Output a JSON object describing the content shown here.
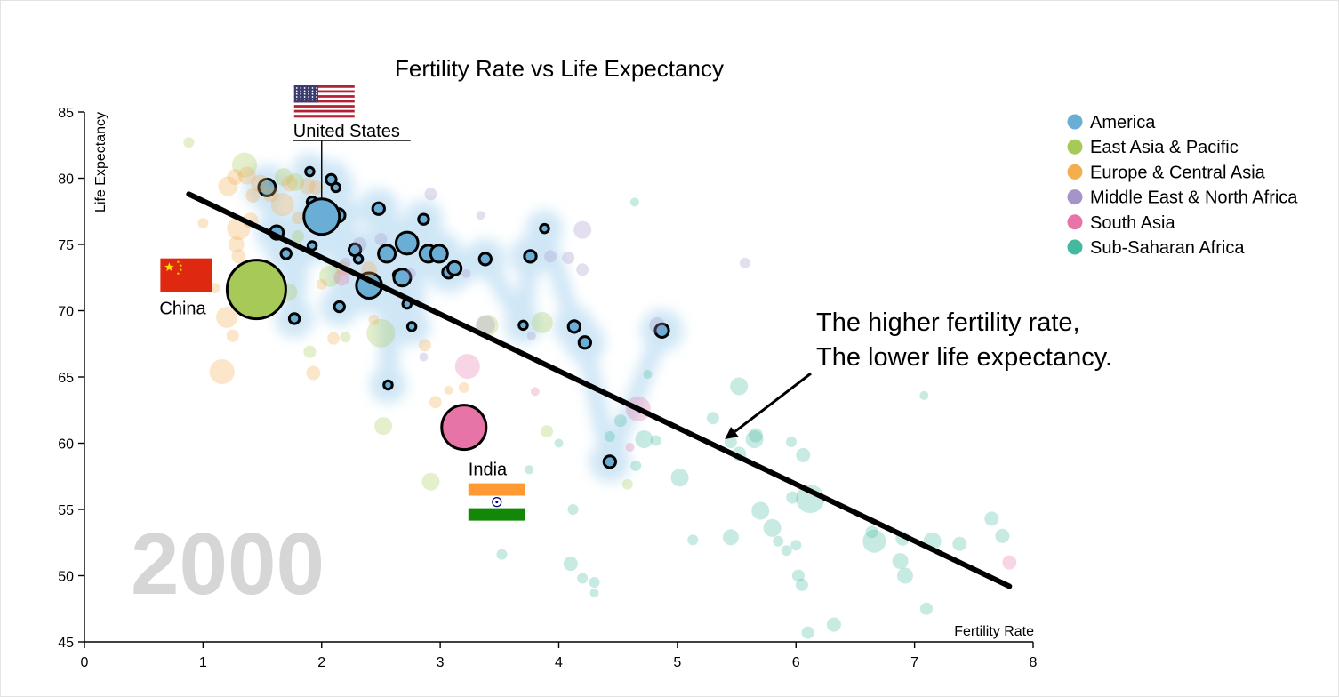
{
  "chart_data": {
    "type": "scatter",
    "title": "Fertility Rate vs Life Expectancy",
    "xlabel": "Fertility Rate",
    "ylabel": "Life Expectancy",
    "year_label": "2000",
    "xlim": [
      0,
      8
    ],
    "ylim": [
      45,
      85
    ],
    "xticks": [
      "0",
      "1",
      "2",
      "3",
      "4",
      "5",
      "6",
      "7",
      "8"
    ],
    "yticks": [
      "45",
      "50",
      "55",
      "60",
      "65",
      "70",
      "75",
      "80",
      "85"
    ],
    "grid": false,
    "legend_position": "top-right",
    "legend": [
      {
        "name": "America",
        "color": "#6aaed6"
      },
      {
        "name": "East Asia & Pacific",
        "color": "#a6c957"
      },
      {
        "name": "Europe & Central Asia",
        "color": "#f4ad4f"
      },
      {
        "name": "Middle East & North Africa",
        "color": "#a594c9"
      },
      {
        "name": "South Asia",
        "color": "#e774a6"
      },
      {
        "name": "Sub-Saharan Africa",
        "color": "#45b8a0"
      }
    ],
    "trend_line": {
      "x": [
        0.88,
        7.8
      ],
      "y": [
        78.8,
        49.2
      ]
    },
    "annotation": {
      "lines": [
        "The higher fertility rate,",
        "The lower life expectancy."
      ],
      "arrow_to": {
        "x": 5.4,
        "y": 60.3
      }
    },
    "highlighted": [
      {
        "name": "United States",
        "x": 2.0,
        "y": 77.1,
        "region": "America",
        "flag": "us-flag-icon"
      },
      {
        "name": "China",
        "x": 1.45,
        "y": 71.6,
        "region": "East Asia & Pacific",
        "flag": "china-flag-icon"
      },
      {
        "name": "India",
        "x": 3.2,
        "y": 61.2,
        "region": "South Asia",
        "flag": "india-flag-icon"
      }
    ],
    "series": [
      {
        "name": "America",
        "points": [
          [
            1.54,
            79.3,
            1
          ],
          [
            1.62,
            75.9,
            0.8
          ],
          [
            1.7,
            74.3,
            0.6
          ],
          [
            1.77,
            69.4,
            0.6
          ],
          [
            1.92,
            78.2,
            0.6
          ],
          [
            1.9,
            80.5,
            0.5
          ],
          [
            1.92,
            74.9,
            0.5
          ],
          [
            2.0,
            77.1,
            2
          ],
          [
            2.08,
            79.9,
            0.6
          ],
          [
            2.12,
            79.3,
            0.5
          ],
          [
            2.14,
            77.2,
            0.8
          ],
          [
            2.15,
            70.3,
            0.6
          ],
          [
            2.28,
            74.6,
            0.7
          ],
          [
            2.31,
            73.9,
            0.5
          ],
          [
            2.4,
            71.9,
            1.5
          ],
          [
            2.48,
            77.7,
            0.7
          ],
          [
            2.55,
            74.3,
            1
          ],
          [
            2.56,
            64.4,
            0.5
          ],
          [
            2.64,
            72.7,
            0.5
          ],
          [
            2.68,
            72.5,
            1
          ],
          [
            2.72,
            75.1,
            1.3
          ],
          [
            2.72,
            70.5,
            0.5
          ],
          [
            2.76,
            68.8,
            0.5
          ],
          [
            2.86,
            76.9,
            0.6
          ],
          [
            2.9,
            74.3,
            1
          ],
          [
            2.99,
            74.3,
            1
          ],
          [
            3.07,
            72.9,
            0.7
          ],
          [
            3.12,
            73.2,
            0.8
          ],
          [
            3.38,
            73.9,
            0.7
          ],
          [
            3.7,
            68.9,
            0.5
          ],
          [
            3.76,
            74.1,
            0.7
          ],
          [
            3.88,
            76.2,
            0.5
          ],
          [
            4.13,
            68.8,
            0.7
          ],
          [
            4.22,
            67.6,
            0.7
          ],
          [
            4.43,
            58.6,
            0.7
          ],
          [
            4.87,
            68.5,
            0.8
          ]
        ]
      },
      {
        "name": "East Asia & Pacific",
        "points": [
          [
            1.45,
            71.6,
            3.3
          ],
          [
            1.35,
            81.0,
            1.4
          ],
          [
            0.88,
            82.7,
            0.6
          ],
          [
            1.68,
            80.1,
            1
          ],
          [
            1.78,
            79.7,
            1
          ],
          [
            2.07,
            72.6,
            1.2
          ],
          [
            2.5,
            68.3,
            1.6
          ],
          [
            2.52,
            61.3,
            1
          ],
          [
            2.92,
            57.1,
            1
          ],
          [
            3.4,
            68.9,
            1.2
          ],
          [
            3.86,
            69.1,
            1.2
          ],
          [
            1.6,
            72.1,
            1
          ],
          [
            1.72,
            71.4,
            1
          ],
          [
            1.9,
            66.9,
            0.7
          ],
          [
            1.8,
            75.6,
            0.7
          ],
          [
            2.2,
            68.0,
            0.6
          ],
          [
            4.58,
            56.9,
            0.6
          ],
          [
            3.9,
            60.9,
            0.7
          ]
        ]
      },
      {
        "name": "Europe & Central Asia",
        "points": [
          [
            1.16,
            65.4,
            1.4
          ],
          [
            1.2,
            69.5,
            1.2
          ],
          [
            1.27,
            80.1,
            0.9
          ],
          [
            1.21,
            79.4,
            1.1
          ],
          [
            1.37,
            80.2,
            1
          ],
          [
            1.3,
            76.2,
            1.3
          ],
          [
            1.28,
            75.0,
            0.9
          ],
          [
            1.4,
            76.8,
            0.9
          ],
          [
            1.42,
            78.7,
            0.8
          ],
          [
            1.48,
            79.6,
            1
          ],
          [
            1.57,
            78.8,
            0.9
          ],
          [
            1.67,
            78.0,
            1.3
          ],
          [
            1.73,
            79.6,
            0.9
          ],
          [
            1.88,
            79.4,
            0.9
          ],
          [
            1.95,
            79.3,
            0.8
          ],
          [
            2.18,
            73.2,
            0.8
          ],
          [
            2.4,
            73.1,
            0.9
          ],
          [
            1.25,
            68.1,
            0.7
          ],
          [
            1.3,
            74.1,
            0.8
          ],
          [
            1.1,
            71.7,
            0.6
          ],
          [
            1.0,
            76.6,
            0.6
          ],
          [
            1.5,
            72.3,
            0.6
          ],
          [
            1.93,
            65.3,
            0.8
          ],
          [
            2.1,
            67.9,
            0.7
          ],
          [
            3.2,
            64.2,
            0.6
          ],
          [
            3.07,
            64.0,
            0.5
          ],
          [
            2.87,
            67.4,
            0.7
          ],
          [
            2.44,
            69.3,
            0.6
          ],
          [
            2.96,
            63.1,
            0.7
          ],
          [
            1.4,
            71.0,
            0.6
          ],
          [
            1.8,
            77.0,
            0.7
          ],
          [
            2.0,
            72.0,
            0.6
          ]
        ]
      },
      {
        "name": "Middle East & North Africa",
        "points": [
          [
            2.32,
            75.0,
            0.8
          ],
          [
            2.2,
            73.6,
            0.6
          ],
          [
            2.5,
            75.4,
            0.7
          ],
          [
            2.75,
            72.8,
            0.6
          ],
          [
            2.92,
            78.8,
            0.7
          ],
          [
            3.34,
            77.2,
            0.5
          ],
          [
            3.22,
            72.8,
            0.5
          ],
          [
            3.38,
            68.9,
            1.1
          ],
          [
            3.93,
            74.1,
            0.7
          ],
          [
            4.08,
            74.0,
            0.7
          ],
          [
            4.2,
            73.1,
            0.7
          ],
          [
            4.2,
            76.1,
            1
          ],
          [
            4.83,
            68.9,
            0.9
          ],
          [
            5.57,
            73.6,
            0.6
          ],
          [
            3.77,
            68.1,
            0.5
          ],
          [
            2.86,
            66.5,
            0.5
          ]
        ]
      },
      {
        "name": "South Asia",
        "points": [
          [
            3.2,
            61.2,
            2.5
          ],
          [
            3.23,
            65.8,
            1.4
          ],
          [
            4.67,
            62.6,
            1.4
          ],
          [
            2.17,
            72.5,
            0.9
          ],
          [
            7.8,
            51.0,
            0.8
          ],
          [
            3.8,
            63.9,
            0.5
          ],
          [
            4.6,
            59.7,
            0.5
          ]
        ]
      },
      {
        "name": "Sub-Saharan Africa",
        "points": [
          [
            4.64,
            78.2,
            0.5
          ],
          [
            3.52,
            51.6,
            0.6
          ],
          [
            4.12,
            55.0,
            0.6
          ],
          [
            4.43,
            60.5,
            0.6
          ],
          [
            4.52,
            61.7,
            0.7
          ],
          [
            4.65,
            58.3,
            0.6
          ],
          [
            4.75,
            65.2,
            0.5
          ],
          [
            4.72,
            60.3,
            1
          ],
          [
            4.82,
            60.2,
            0.6
          ],
          [
            5.02,
            57.4,
            1
          ],
          [
            5.13,
            52.7,
            0.6
          ],
          [
            5.3,
            61.9,
            0.7
          ],
          [
            5.45,
            60.1,
            0.7
          ],
          [
            5.45,
            52.9,
            0.9
          ],
          [
            5.52,
            59.2,
            0.8
          ],
          [
            5.52,
            64.3,
            1
          ],
          [
            5.65,
            60.3,
            1
          ],
          [
            5.66,
            60.6,
            0.8
          ],
          [
            5.7,
            54.9,
            1
          ],
          [
            5.8,
            53.6,
            1
          ],
          [
            5.85,
            52.6,
            0.6
          ],
          [
            5.92,
            51.9,
            0.6
          ],
          [
            5.96,
            60.1,
            0.6
          ],
          [
            5.97,
            55.9,
            0.7
          ],
          [
            6.0,
            52.3,
            0.6
          ],
          [
            6.02,
            50.0,
            0.7
          ],
          [
            6.05,
            49.3,
            0.7
          ],
          [
            6.06,
            59.1,
            0.8
          ],
          [
            6.12,
            55.8,
            1.6
          ],
          [
            6.1,
            45.7,
            0.7
          ],
          [
            6.32,
            46.3,
            0.8
          ],
          [
            6.64,
            53.3,
            0.7
          ],
          [
            6.66,
            52.6,
            1.3
          ],
          [
            6.88,
            51.1,
            0.9
          ],
          [
            6.9,
            52.8,
            0.8
          ],
          [
            6.92,
            50.0,
            0.9
          ],
          [
            7.08,
            63.6,
            0.5
          ],
          [
            7.1,
            47.5,
            0.7
          ],
          [
            7.15,
            52.6,
            1
          ],
          [
            7.38,
            52.4,
            0.8
          ],
          [
            7.65,
            54.3,
            0.8
          ],
          [
            7.74,
            53.0,
            0.8
          ],
          [
            4.0,
            60.0,
            0.5
          ],
          [
            3.75,
            58.0,
            0.5
          ],
          [
            4.3,
            49.5,
            0.6
          ],
          [
            4.3,
            48.7,
            0.5
          ],
          [
            4.2,
            49.8,
            0.6
          ],
          [
            4.1,
            50.9,
            0.8
          ]
        ]
      }
    ]
  }
}
